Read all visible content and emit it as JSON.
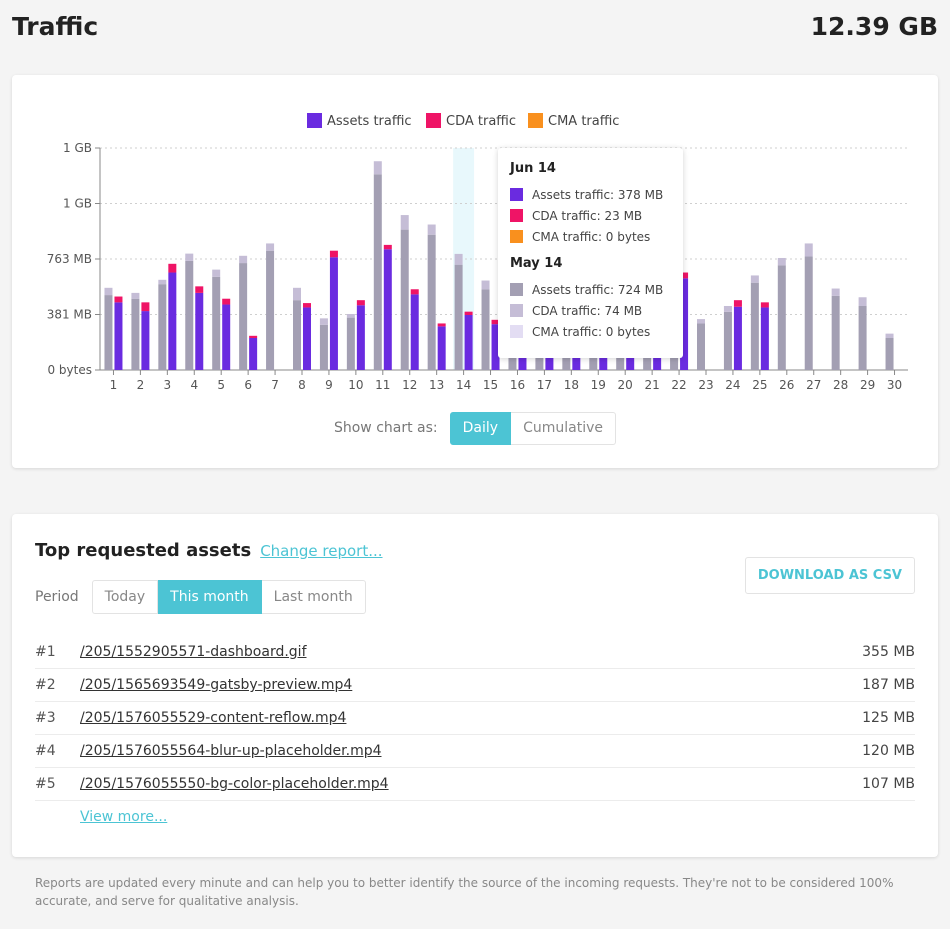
{
  "header": {
    "title": "Traffic",
    "total": "12.39 GB"
  },
  "legend": [
    {
      "label": "Assets traffic",
      "color": "#6a2be0"
    },
    {
      "label": "CDA traffic",
      "color": "#ef1466"
    },
    {
      "label": "CMA traffic",
      "color": "#f9901e"
    }
  ],
  "chart_data": {
    "type": "bar",
    "stacked": true,
    "grouped": true,
    "categories": [
      "1",
      "2",
      "3",
      "4",
      "5",
      "6",
      "7",
      "8",
      "9",
      "10",
      "11",
      "12",
      "13",
      "14",
      "15",
      "16",
      "17",
      "18",
      "19",
      "20",
      "21",
      "22",
      "23",
      "24",
      "25",
      "26",
      "27",
      "28",
      "29",
      "30"
    ],
    "y_tick_labels": [
      "0 bytes",
      "381 MB",
      "763 MB",
      "1 GB",
      "1 GB"
    ],
    "ylim_mb": [
      0,
      1526
    ],
    "grid": true,
    "legend_position": "top-center",
    "current_series": [
      {
        "name": "Assets traffic",
        "color": "#6a2be0",
        "values": [
          465,
          405,
          670,
          530,
          450,
          220,
          null,
          430,
          775,
          445,
          830,
          520,
          300,
          378,
          315,
          320,
          420,
          500,
          460,
          330,
          280,
          630,
          null,
          435,
          430,
          null,
          null,
          null,
          null,
          null
        ]
      },
      {
        "name": "CDA traffic",
        "color": "#ef1466",
        "values": [
          40,
          60,
          60,
          45,
          40,
          15,
          null,
          30,
          45,
          35,
          30,
          35,
          20,
          23,
          30,
          15,
          20,
          20,
          20,
          15,
          20,
          40,
          null,
          45,
          35,
          null,
          null,
          null,
          null,
          null
        ]
      },
      {
        "name": "CMA traffic",
        "color": "#f9901e",
        "values": [
          0,
          0,
          0,
          0,
          0,
          0,
          null,
          0,
          0,
          0,
          0,
          0,
          0,
          0,
          0,
          0,
          0,
          0,
          0,
          0,
          0,
          0,
          null,
          0,
          0,
          null,
          null,
          null,
          null,
          null
        ]
      }
    ],
    "previous_series": [
      {
        "name": "Assets traffic",
        "color": "#a39fb3",
        "values": [
          515,
          490,
          590,
          750,
          640,
          735,
          820,
          480,
          310,
          360,
          1345,
          965,
          930,
          724,
          555,
          120,
          130,
          140,
          140,
          130,
          140,
          140,
          320,
          400,
          600,
          720,
          780,
          510,
          440,
          220
        ]
      },
      {
        "name": "CDA traffic",
        "color": "#c5bdd6",
        "values": [
          50,
          40,
          30,
          50,
          50,
          50,
          50,
          85,
          45,
          25,
          90,
          100,
          70,
          74,
          60,
          10,
          10,
          10,
          10,
          10,
          10,
          10,
          30,
          40,
          50,
          50,
          90,
          50,
          60,
          30
        ]
      },
      {
        "name": "CMA traffic",
        "color": "#e3ddf3",
        "values": [
          0,
          0,
          0,
          0,
          0,
          0,
          0,
          0,
          0,
          0,
          0,
          0,
          0,
          0,
          0,
          0,
          0,
          0,
          0,
          0,
          0,
          0,
          0,
          0,
          0,
          0,
          0,
          0,
          0,
          0
        ]
      }
    ],
    "highlight_category": "14"
  },
  "tooltip": {
    "current": {
      "title": "Jun 14",
      "rows": [
        {
          "label": "Assets traffic: 378 MB",
          "color": "#6a2be0"
        },
        {
          "label": "CDA traffic: 23 MB",
          "color": "#ef1466"
        },
        {
          "label": "CMA traffic: 0 bytes",
          "color": "#f9901e"
        }
      ]
    },
    "previous": {
      "title": "May 14",
      "rows": [
        {
          "label": "Assets traffic: 724 MB",
          "color": "#a39fb3"
        },
        {
          "label": "CDA traffic: 74 MB",
          "color": "#c5bdd6"
        },
        {
          "label": "CMA traffic: 0 bytes",
          "color": "#e3ddf3"
        }
      ]
    }
  },
  "chart_toggle": {
    "label": "Show chart as:",
    "options": [
      "Daily",
      "Cumulative"
    ],
    "active": "Daily"
  },
  "assets": {
    "title": "Top requested assets",
    "change_link": "Change report...",
    "download_label": "DOWNLOAD AS CSV",
    "period_label": "Period",
    "periods": [
      "Today",
      "This month",
      "Last month"
    ],
    "active_period": "This month",
    "rows": [
      {
        "rank": "#1",
        "path": "/205/1552905571-dashboard.gif",
        "size": "355 MB"
      },
      {
        "rank": "#2",
        "path": "/205/1565693549-gatsby-preview.mp4",
        "size": "187 MB"
      },
      {
        "rank": "#3",
        "path": "/205/1576055529-content-reflow.mp4",
        "size": "125 MB"
      },
      {
        "rank": "#4",
        "path": "/205/1576055564-blur-up-placeholder.mp4",
        "size": "120 MB"
      },
      {
        "rank": "#5",
        "path": "/205/1576055550-bg-color-placeholder.mp4",
        "size": "107 MB"
      }
    ],
    "view_more": "View more..."
  },
  "footnote": "Reports are updated every minute and can help you to better identify the source of the incoming requests. They're not to be considered 100% accurate, and serve for qualitative analysis.",
  "colors": {
    "accent": "#4cc4d4",
    "highlight": "#e8f8fc"
  }
}
